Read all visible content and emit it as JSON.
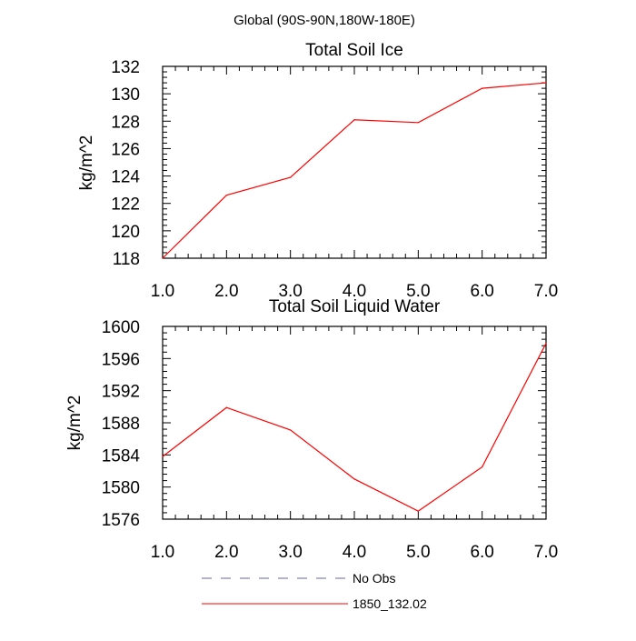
{
  "figure_title": "Global (90S-90N,180W-180E)",
  "legend": [
    {
      "label": "No Obs",
      "color": "#6666aa",
      "style": "dashed"
    },
    {
      "label": "1850_132.02",
      "color": "#ff0000",
      "style": "solid"
    }
  ],
  "chart_data": [
    {
      "type": "line",
      "title": "Total Soil Ice",
      "xlabel": "",
      "ylabel": "kg/m^2",
      "x": [
        1,
        2,
        3,
        4,
        5,
        6,
        7
      ],
      "xticks": [
        "1.0",
        "2.0",
        "3.0",
        "4.0",
        "5.0",
        "6.0",
        "7.0"
      ],
      "xlim": [
        1,
        7
      ],
      "ylim": [
        118,
        132
      ],
      "yticks": [
        118,
        120,
        122,
        124,
        126,
        128,
        130,
        132
      ],
      "series": [
        {
          "name": "1850_132.02",
          "color": "#ff0000",
          "values": [
            118.0,
            122.6,
            123.9,
            128.1,
            127.9,
            130.4,
            130.8
          ]
        }
      ]
    },
    {
      "type": "line",
      "title": "Total Soil Liquid Water",
      "xlabel": "",
      "ylabel": "kg/m^2",
      "x": [
        1,
        2,
        3,
        4,
        5,
        6,
        7
      ],
      "xticks": [
        "1.0",
        "2.0",
        "3.0",
        "4.0",
        "5.0",
        "6.0",
        "7.0"
      ],
      "xlim": [
        1,
        7
      ],
      "ylim": [
        1576,
        1600
      ],
      "yticks": [
        1576,
        1580,
        1584,
        1588,
        1592,
        1596,
        1600
      ],
      "series": [
        {
          "name": "1850_132.02",
          "color": "#ff0000",
          "values": [
            1583.8,
            1589.9,
            1587.1,
            1581.0,
            1577.0,
            1582.5,
            1597.9
          ]
        }
      ]
    }
  ]
}
